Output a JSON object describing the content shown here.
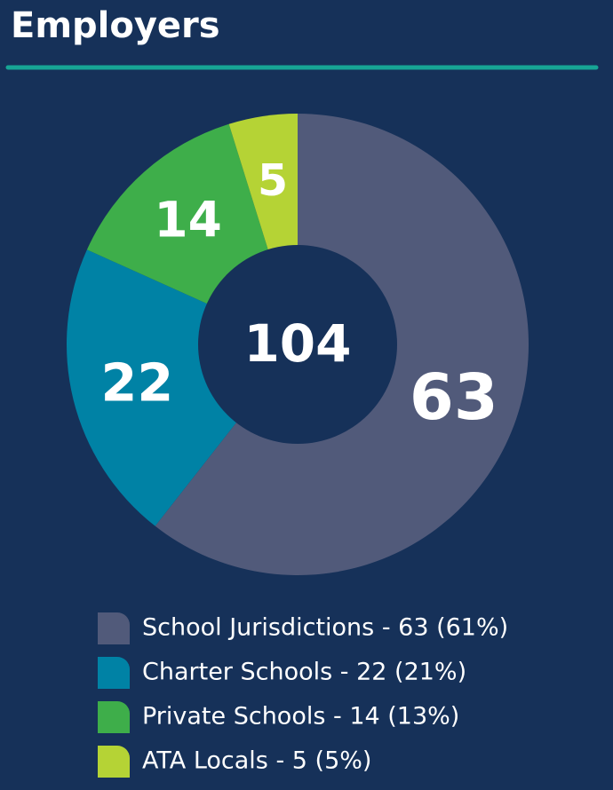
{
  "chart_data": {
    "type": "donut",
    "title": "Employers",
    "total": 104,
    "categories": [
      "School Jurisdictions",
      "Charter Schools",
      "Private Schools",
      "ATA Locals"
    ],
    "values": [
      63,
      22,
      14,
      5
    ],
    "colors": [
      "#515a7a",
      "#0082a5",
      "#3eae4a",
      "#b5d335"
    ],
    "legend_labels": [
      "School Jurisdictions - 63 (61%)",
      "Charter Schools - 22 (21%)",
      "Private Schools - 14 (13%)",
      "ATA Locals - 5 (5%)"
    ]
  }
}
